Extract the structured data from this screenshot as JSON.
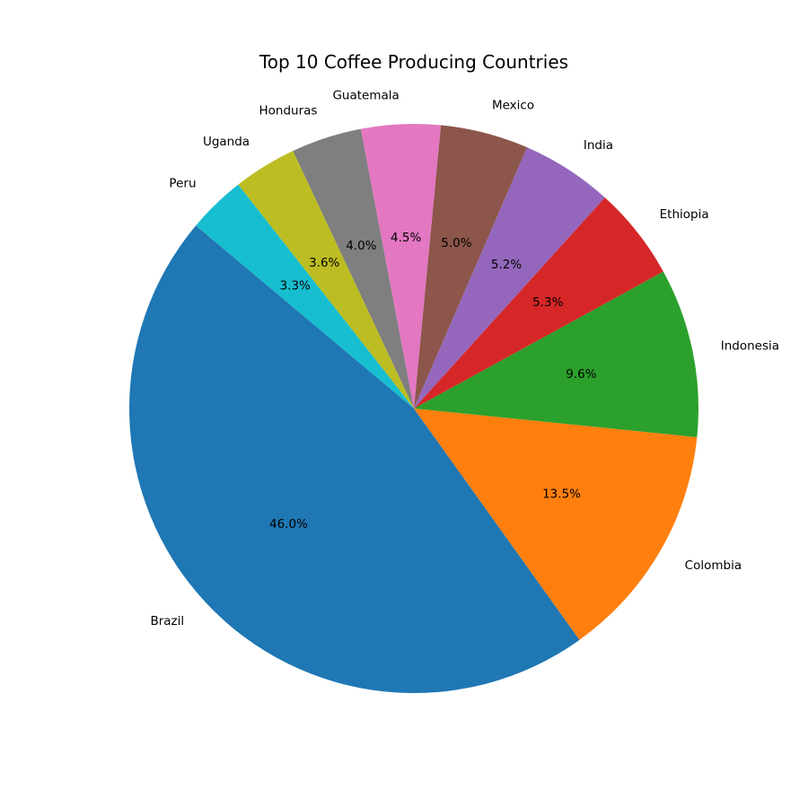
{
  "chart_data": {
    "type": "pie",
    "title": "Top 10 Coffee Producing Countries",
    "categories": [
      "Brazil",
      "Colombia",
      "Indonesia",
      "Ethiopia",
      "India",
      "Mexico",
      "Guatemala",
      "Honduras",
      "Uganda",
      "Peru"
    ],
    "values": [
      46.0,
      13.5,
      9.6,
      5.3,
      5.2,
      5.0,
      4.5,
      4.0,
      3.6,
      3.3
    ],
    "percent_labels": [
      "46.0%",
      "13.5%",
      "9.6%",
      "5.3%",
      "5.2%",
      "5.0%",
      "4.5%",
      "4.0%",
      "3.6%",
      "3.3%"
    ],
    "colors": [
      "#1f77b4",
      "#ff7f0e",
      "#2ca02c",
      "#d62728",
      "#9467bd",
      "#8c564b",
      "#e377c2",
      "#7f7f7f",
      "#bcbd22",
      "#17becf"
    ],
    "start_angle_deg": 140,
    "direction": "counterclockwise",
    "legend": "none"
  }
}
